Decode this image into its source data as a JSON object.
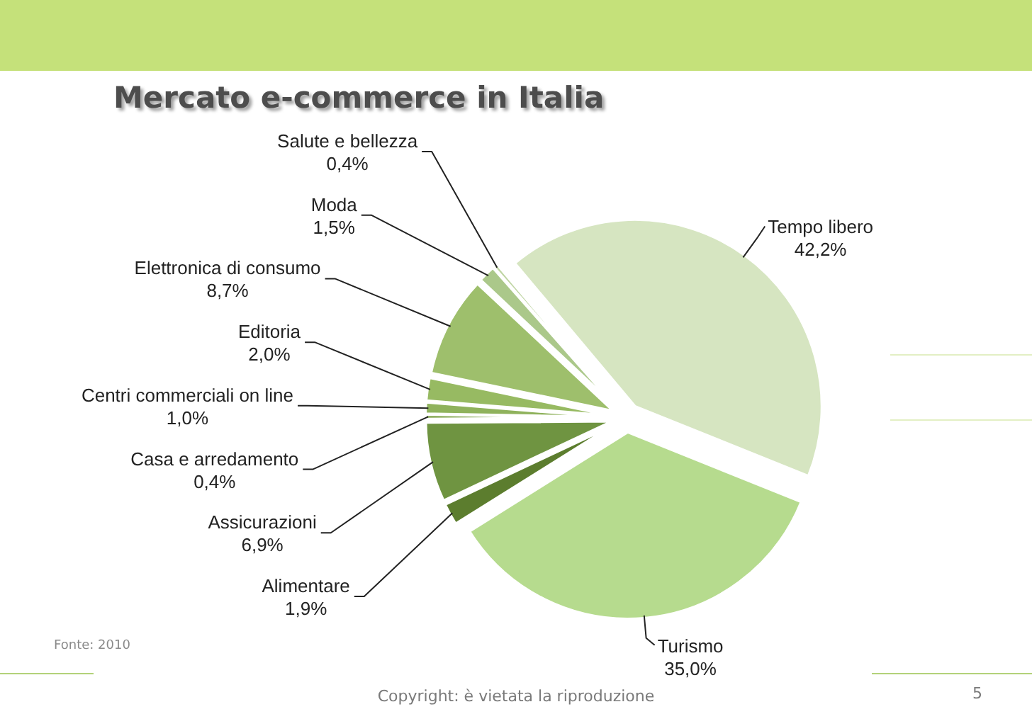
{
  "chart_data": {
    "type": "pie",
    "title": "Mercato e-commerce in Italia",
    "categories": [
      "Tempo libero",
      "Turismo",
      "Alimentare",
      "Assicurazioni",
      "Casa e arredamento",
      "Centri commerciali on line",
      "Editoria",
      "Elettronica di consumo",
      "Moda",
      "Salute e bellezza"
    ],
    "values": [
      42.2,
      35.0,
      1.9,
      6.9,
      0.4,
      1.0,
      2.0,
      8.7,
      1.5,
      0.4
    ],
    "colors": [
      "#d6e5c1",
      "#b6db8e",
      "#5c7d2e",
      "#6f9441",
      "#83a650",
      "#8fb25c",
      "#97ba62",
      "#9ebf6c",
      "#abc88a",
      "#bfd5a3"
    ],
    "value_labels": [
      "42,2%",
      "35,0%",
      "1,9%",
      "6,9%",
      "0,4%",
      "1,0%",
      "2,0%",
      "8,7%",
      "1,5%",
      "0,4%"
    ],
    "annotations": [
      "Fonte: 2010",
      "Copyright: è vietata la riproduzione",
      "5"
    ]
  }
}
